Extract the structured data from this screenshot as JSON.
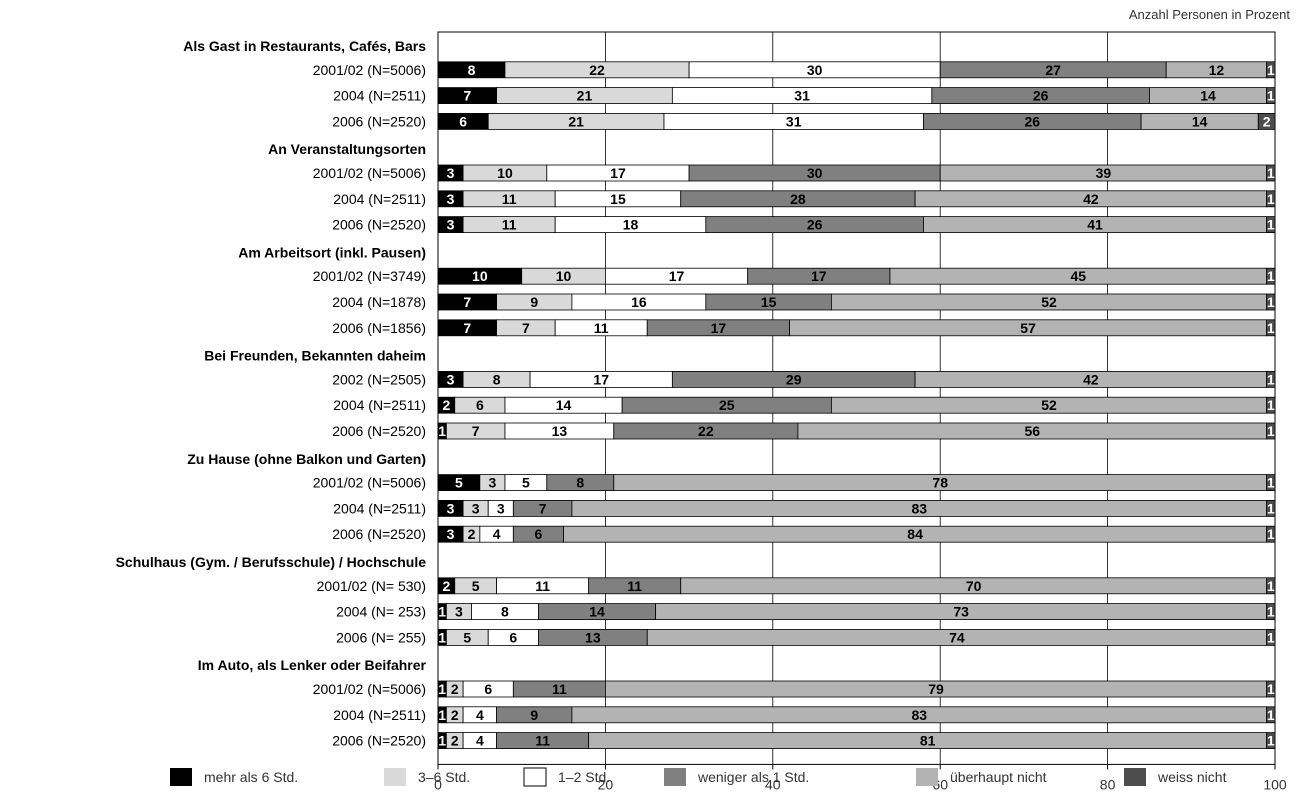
{
  "chart_data": {
    "type": "bar",
    "orientation": "horizontal",
    "stacked": true,
    "unit_note": "Anzahl Personen in Prozent",
    "xlim": [
      0,
      100
    ],
    "x_ticks": [
      0,
      20,
      40,
      60,
      80,
      100
    ],
    "grid": true,
    "legend_position": "bottom",
    "series": [
      {
        "name": "mehr als 6 Std.",
        "color": "#000000",
        "text_color": "#ffffff"
      },
      {
        "name": "3–6 Std.",
        "color": "#d9d9d9",
        "text_color": "#000000"
      },
      {
        "name": "1–2 Std.",
        "color": "#ffffff",
        "text_color": "#000000"
      },
      {
        "name": "weniger als 1 Std.",
        "color": "#808080",
        "text_color": "#000000"
      },
      {
        "name": "überhaupt nicht",
        "color": "#b3b3b3",
        "text_color": "#000000"
      },
      {
        "name": "weiss nicht",
        "color": "#4d4d4d",
        "text_color": "#ffffff"
      }
    ],
    "groups": [
      {
        "title": "Als Gast in Restaurants, Cafés, Bars",
        "rows": [
          {
            "label": "2001/02 (N=5006)",
            "values": [
              8,
              22,
              30,
              27,
              12,
              1
            ]
          },
          {
            "label": "2004 (N=2511)",
            "values": [
              7,
              21,
              31,
              26,
              14,
              1
            ]
          },
          {
            "label": "2006 (N=2520)",
            "values": [
              6,
              21,
              31,
              26,
              14,
              2
            ]
          }
        ]
      },
      {
        "title": "An Veranstaltungsorten",
        "rows": [
          {
            "label": "2001/02 (N=5006)",
            "values": [
              3,
              10,
              17,
              30,
              39,
              1
            ]
          },
          {
            "label": "2004 (N=2511)",
            "values": [
              3,
              11,
              15,
              28,
              42,
              1
            ]
          },
          {
            "label": "2006 (N=2520)",
            "values": [
              3,
              11,
              18,
              26,
              41,
              1
            ]
          }
        ]
      },
      {
        "title": "Am Arbeitsort (inkl. Pausen)",
        "rows": [
          {
            "label": "2001/02 (N=3749)",
            "values": [
              10,
              10,
              17,
              17,
              45,
              1
            ]
          },
          {
            "label": "2004 (N=1878)",
            "values": [
              7,
              9,
              16,
              15,
              52,
              1
            ]
          },
          {
            "label": "2006 (N=1856)",
            "values": [
              7,
              7,
              11,
              17,
              57,
              1
            ]
          }
        ]
      },
      {
        "title": "Bei Freunden, Bekannten daheim",
        "rows": [
          {
            "label": "2002 (N=2505)",
            "values": [
              3,
              8,
              17,
              29,
              42,
              1
            ]
          },
          {
            "label": "2004 (N=2511)",
            "values": [
              2,
              6,
              14,
              25,
              52,
              1
            ]
          },
          {
            "label": "2006 (N=2520)",
            "values": [
              1,
              7,
              13,
              22,
              56,
              1
            ]
          }
        ]
      },
      {
        "title": "Zu Hause (ohne Balkon und Garten)",
        "rows": [
          {
            "label": "2001/02 (N=5006)",
            "values": [
              5,
              3,
              5,
              8,
              78,
              1
            ]
          },
          {
            "label": "2004 (N=2511)",
            "values": [
              3,
              3,
              3,
              7,
              83,
              1
            ]
          },
          {
            "label": "2006 (N=2520)",
            "values": [
              3,
              2,
              4,
              6,
              84,
              1
            ]
          }
        ]
      },
      {
        "title": "Schulhaus (Gym. / Berufsschule) / Hochschule",
        "rows": [
          {
            "label": "2001/02 (N=  530)",
            "values": [
              2,
              5,
              11,
              11,
              70,
              1
            ]
          },
          {
            "label": "2004 (N=  253)",
            "values": [
              1,
              3,
              8,
              14,
              73,
              1
            ]
          },
          {
            "label": "2006 (N=  255)",
            "values": [
              1,
              5,
              6,
              13,
              74,
              1
            ]
          }
        ]
      },
      {
        "title": "Im Auto, als Lenker oder Beifahrer",
        "rows": [
          {
            "label": "2001/02 (N=5006)",
            "values": [
              1,
              2,
              6,
              11,
              79,
              1
            ]
          },
          {
            "label": "2004 (N=2511)",
            "values": [
              1,
              2,
              4,
              9,
              83,
              1
            ]
          },
          {
            "label": "2006 (N=2520)",
            "values": [
              1,
              2,
              4,
              11,
              81,
              1
            ]
          }
        ]
      }
    ]
  }
}
